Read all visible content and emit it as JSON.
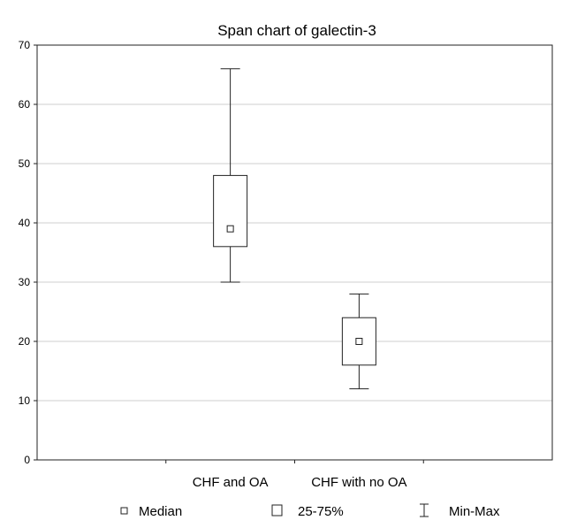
{
  "chart_data": {
    "type": "box",
    "title": "Span chart of galectin-3",
    "xlabel": "",
    "ylabel": "",
    "ylim": [
      0,
      70
    ],
    "yticks": [
      0,
      10,
      20,
      30,
      40,
      50,
      60,
      70
    ],
    "grid": true,
    "categories": [
      "CHF and OA",
      "CHF with no OA"
    ],
    "boxes": [
      {
        "category": "CHF and OA",
        "min": 30,
        "q1": 36,
        "median": 39,
        "q3": 48,
        "max": 66
      },
      {
        "category": "CHF with no OA",
        "min": 12,
        "q1": 16,
        "median": 20,
        "q3": 24,
        "max": 28
      }
    ],
    "legend": {
      "placement": "bottom",
      "items": [
        {
          "label": "Median",
          "symbol": "small-square"
        },
        {
          "label": "25-75%",
          "symbol": "square"
        },
        {
          "label": "Min-Max",
          "symbol": "whisker"
        }
      ]
    }
  }
}
